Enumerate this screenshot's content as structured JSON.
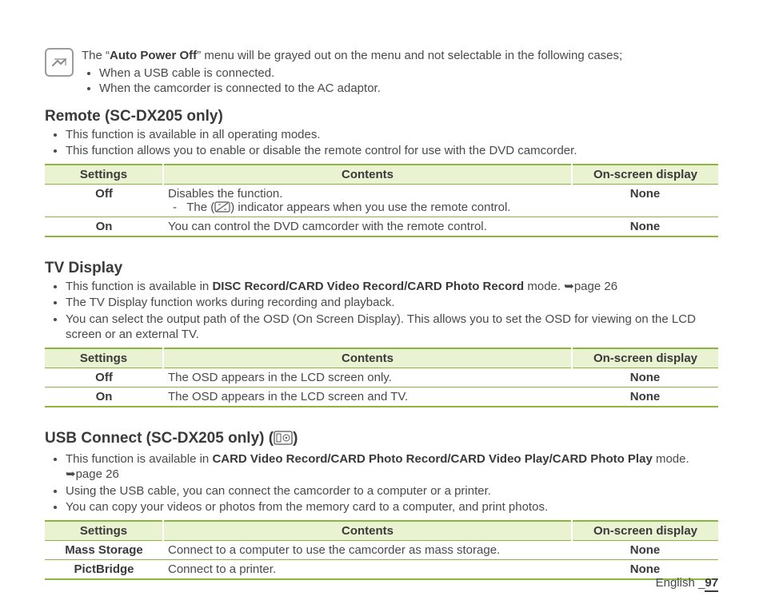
{
  "note": {
    "lead": "The “",
    "bold": "Auto Power Off",
    "tail": "” menu will be grayed out on the menu and not selectable in the following cases;",
    "bullets": [
      "When a USB cable is connected.",
      "When the camcorder is connected to the AC adaptor."
    ]
  },
  "sections": [
    {
      "title": "Remote (SC-DX205 only)",
      "has_trail_icon": false,
      "bullets": [
        "This function is available in all operating modes.",
        "This function allows you to enable or disable the remote control for use with the DVD camcorder."
      ],
      "headers": [
        "Settings",
        "Contents",
        "On-screen display"
      ],
      "rows": [
        {
          "setting": "Off",
          "contents_html": "Disables the function.<div style='padding-left:6px;'>- &nbsp; The (<svg class='cell-inner' width='20' height='14' viewBox='0 0 20 14'><rect x='1' y='1' width='18' height='12' rx='2' fill='none' stroke='#555' stroke-width='1.2'/><line x1='3' y1='12' x2='17' y2='2' stroke='#555' stroke-width='1.2'/><line x1='5' y1='4' x2='8' y2='4' stroke='#555'/><line x1='12' y1='10' x2='15' y2='10' stroke='#555'/></svg>) indicator appears when you use the remote control.</div>",
          "osd": "None"
        },
        {
          "setting": "On",
          "contents_html": "You can control the DVD camcorder with the remote control.",
          "osd": "None"
        }
      ]
    },
    {
      "title": "TV Display",
      "has_trail_icon": false,
      "bullets": [
        "This function is available in <b>DISC Record/CARD Video Record/CARD Photo Record</b> mode. <span class='ref-arrow'>➥</span>page 26",
        "The TV Display function works during recording and playback.",
        "You can select the output path of the OSD (On Screen Display). This allows you to set the OSD for viewing on the LCD screen or an external TV."
      ],
      "headers": [
        "Settings",
        "Contents",
        "On-screen display"
      ],
      "rows": [
        {
          "setting": "Off",
          "contents_html": "The OSD appears in the LCD screen only.",
          "osd": "None"
        },
        {
          "setting": "On",
          "contents_html": "The OSD appears in the LCD screen and TV.",
          "osd": "None"
        }
      ]
    },
    {
      "title": "USB Connect (SC-DX205 only) (",
      "title_tail": ")",
      "has_trail_icon": true,
      "bullets": [
        "This function is available in <b>CARD Video Record/CARD Photo Record/CARD Video Play/CARD Photo Play</b> mode. <span class='ref-arrow'>➥</span>page 26",
        "Using the USB cable, you can connect the camcorder to a computer or a printer.",
        "You can copy your videos or photos from the memory card to a computer, and print photos."
      ],
      "headers": [
        "Settings",
        "Contents",
        "On-screen display"
      ],
      "rows": [
        {
          "setting": "Mass Storage",
          "contents_html": "Connect to a computer to use the camcorder as mass storage.",
          "osd": "None"
        },
        {
          "setting": "PictBridge",
          "contents_html": "Connect to a printer.",
          "osd": "None"
        }
      ]
    }
  ],
  "footer": {
    "lang": "English",
    "sep": "_",
    "page": "97"
  }
}
